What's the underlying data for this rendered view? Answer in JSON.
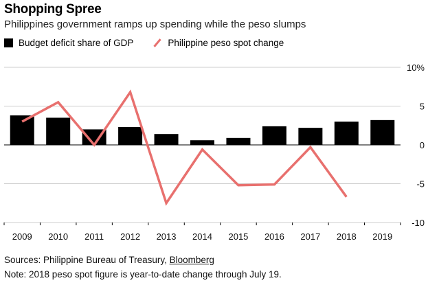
{
  "header": {
    "title": "Shopping Spree",
    "subtitle": "Philippines government ramps up spending while the peso slumps"
  },
  "footer": {
    "sources_prefix": "Sources: Philippine Bureau of Treasury, ",
    "sources_link": "Bloomberg",
    "note": "Note: 2018 peso spot figure is year-to-date change through July 19."
  },
  "chart_data": {
    "type": "bar",
    "categories": [
      "2009",
      "2010",
      "2011",
      "2012",
      "2013",
      "2014",
      "2015",
      "2016",
      "2017",
      "2018",
      "2019"
    ],
    "series": [
      {
        "name": "Budget deficit share of GDP",
        "type": "bar",
        "color": "#000000",
        "values": [
          3.8,
          3.5,
          2.0,
          2.3,
          1.4,
          0.6,
          0.9,
          2.4,
          2.2,
          3.0,
          3.2
        ]
      },
      {
        "name": "Philippine peso spot change",
        "type": "line",
        "color": "#e8706e",
        "values": [
          3.0,
          5.5,
          0.0,
          6.8,
          -7.5,
          -0.6,
          -5.2,
          -5.1,
          -0.3,
          -6.7,
          null
        ]
      }
    ],
    "y_ticks": [
      "10%",
      "5",
      "0",
      "-5",
      "-10"
    ],
    "y_tick_values": [
      10,
      5,
      0,
      -5,
      -10
    ],
    "ylim": [
      -10,
      10
    ],
    "title": "Shopping Spree",
    "xlabel": "",
    "ylabel": "",
    "legend_position": "top-left"
  }
}
